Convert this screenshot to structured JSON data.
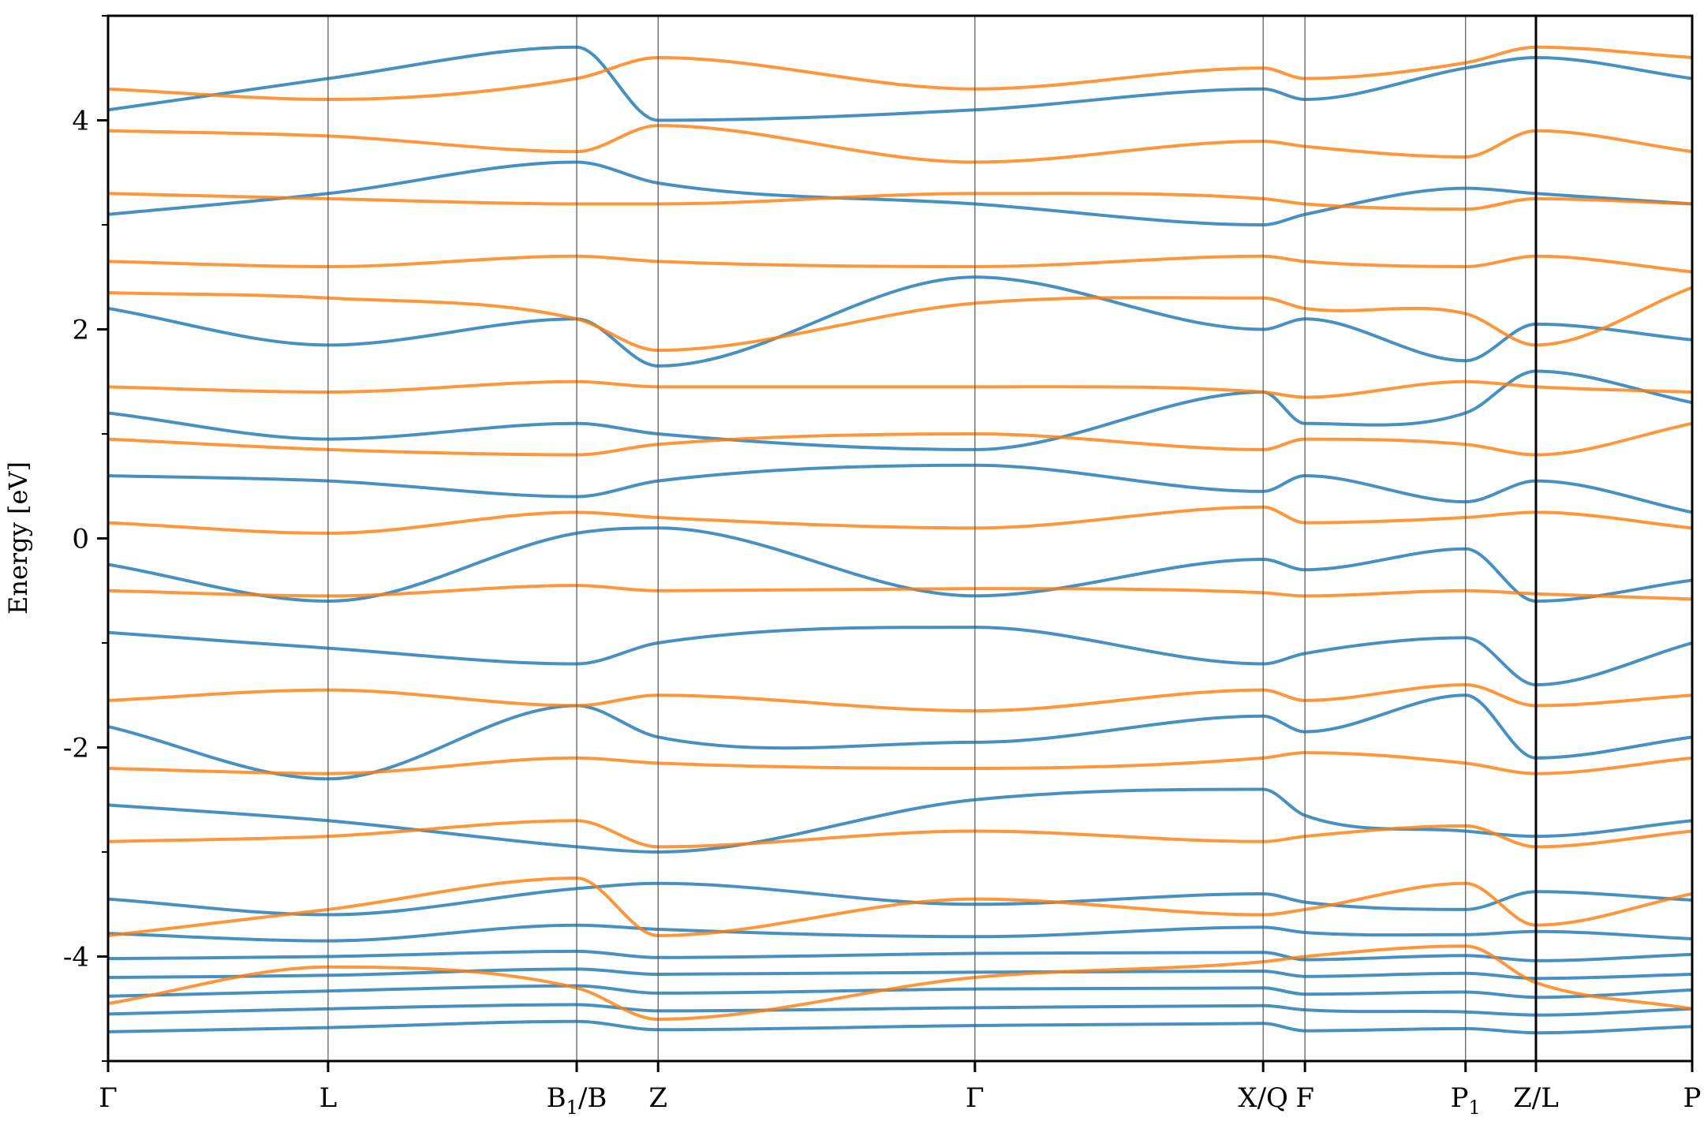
{
  "chart_data": {
    "type": "line",
    "title": "",
    "xlabel": "",
    "ylabel": "Energy [eV]",
    "ylim": [
      -5,
      5
    ],
    "yticks": [
      -4,
      -2,
      0,
      2,
      4
    ],
    "ytick_labels": [
      "-4",
      "-2",
      "0",
      "2",
      "4"
    ],
    "yminor_ticks": [
      -5,
      -3,
      -1,
      1,
      3,
      5
    ],
    "grid": false,
    "legend": "none",
    "kpath": {
      "points": [
        0.0,
        1.0,
        2.13,
        2.5,
        3.94,
        5.25,
        5.44,
        6.17,
        6.49,
        7.2
      ],
      "labels": [
        "Γ",
        "L",
        "B1/B",
        "Z",
        "Γ",
        "X/Q",
        "F",
        "P1",
        "Z/L",
        "P"
      ],
      "label_subscripts": [
        "",
        "",
        "1",
        "",
        "",
        "",
        "",
        "1",
        "",
        ""
      ],
      "segment_break_at": 6.49
    },
    "series": [
      {
        "spin": "up",
        "color": "#1f77b4",
        "bands": [
          [
            -4.72,
            -4.68,
            -4.62,
            -4.7,
            -4.66,
            -4.64,
            -4.71,
            -4.69,
            -4.73,
            -4.67
          ],
          [
            -4.55,
            -4.5,
            -4.46,
            -4.52,
            -4.49,
            -4.47,
            -4.51,
            -4.53,
            -4.56,
            -4.5
          ],
          [
            -4.38,
            -4.33,
            -4.28,
            -4.35,
            -4.31,
            -4.3,
            -4.36,
            -4.34,
            -4.39,
            -4.32
          ],
          [
            -4.2,
            -4.18,
            -4.12,
            -4.17,
            -4.15,
            -4.14,
            -4.19,
            -4.16,
            -4.21,
            -4.17
          ],
          [
            -4.02,
            -4.0,
            -3.95,
            -4.01,
            -3.97,
            -3.96,
            -4.03,
            -3.99,
            -4.04,
            -3.98
          ],
          [
            -3.78,
            -3.85,
            -3.7,
            -3.74,
            -3.81,
            -3.72,
            -3.77,
            -3.79,
            -3.76,
            -3.83
          ],
          [
            -3.45,
            -3.6,
            -3.35,
            -3.3,
            -3.5,
            -3.4,
            -3.48,
            -3.55,
            -3.38,
            -3.46
          ],
          [
            -2.55,
            -2.7,
            -2.95,
            -3.0,
            -2.5,
            -2.4,
            -2.65,
            -2.8,
            -2.85,
            -2.7
          ],
          [
            -1.8,
            -2.3,
            -1.6,
            -1.9,
            -1.95,
            -1.7,
            -1.85,
            -1.5,
            -2.1,
            -1.9
          ],
          [
            -0.9,
            -1.05,
            -1.2,
            -1.0,
            -0.85,
            -1.2,
            -1.1,
            -0.95,
            -1.4,
            -1.0
          ],
          [
            -0.25,
            -0.6,
            0.05,
            0.1,
            -0.55,
            -0.2,
            -0.3,
            -0.1,
            -0.6,
            -0.4
          ],
          [
            0.6,
            0.55,
            0.4,
            0.55,
            0.7,
            0.45,
            0.6,
            0.35,
            0.55,
            0.25
          ],
          [
            1.2,
            0.95,
            1.1,
            1.0,
            0.85,
            1.4,
            1.1,
            1.2,
            1.6,
            1.3
          ],
          [
            2.2,
            1.85,
            2.1,
            1.65,
            2.5,
            2.0,
            2.1,
            1.7,
            2.05,
            1.9
          ],
          [
            3.1,
            3.3,
            3.6,
            3.4,
            3.2,
            3.0,
            3.1,
            3.35,
            3.3,
            3.2
          ],
          [
            4.1,
            4.4,
            4.7,
            4.0,
            4.1,
            4.3,
            4.2,
            4.5,
            4.6,
            4.4
          ]
        ]
      },
      {
        "spin": "down",
        "color": "#ff7f0e",
        "bands": [
          [
            -4.45,
            -4.1,
            -4.3,
            -4.6,
            -4.2,
            -4.05,
            -4.0,
            -3.9,
            -4.25,
            -4.5
          ],
          [
            -3.8,
            -3.55,
            -3.25,
            -3.8,
            -3.45,
            -3.6,
            -3.55,
            -3.3,
            -3.7,
            -3.4
          ],
          [
            -2.9,
            -2.85,
            -2.7,
            -2.95,
            -2.8,
            -2.9,
            -2.85,
            -2.75,
            -2.95,
            -2.8
          ],
          [
            -2.2,
            -2.25,
            -2.1,
            -2.15,
            -2.2,
            -2.1,
            -2.05,
            -2.15,
            -2.25,
            -2.1
          ],
          [
            -1.55,
            -1.45,
            -1.6,
            -1.5,
            -1.65,
            -1.45,
            -1.55,
            -1.4,
            -1.6,
            -1.5
          ],
          [
            -0.5,
            -0.55,
            -0.45,
            -0.5,
            -0.48,
            -0.52,
            -0.55,
            -0.5,
            -0.53,
            -0.58
          ],
          [
            0.15,
            0.05,
            0.25,
            0.2,
            0.1,
            0.3,
            0.15,
            0.2,
            0.25,
            0.1
          ],
          [
            0.95,
            0.85,
            0.8,
            0.9,
            1.0,
            0.85,
            0.95,
            0.9,
            0.8,
            1.1
          ],
          [
            1.45,
            1.4,
            1.5,
            1.45,
            1.45,
            1.4,
            1.35,
            1.5,
            1.45,
            1.4
          ],
          [
            2.35,
            2.3,
            2.1,
            1.8,
            2.25,
            2.3,
            2.2,
            2.15,
            1.85,
            2.4
          ],
          [
            2.65,
            2.6,
            2.7,
            2.65,
            2.6,
            2.7,
            2.65,
            2.6,
            2.7,
            2.55
          ],
          [
            3.3,
            3.25,
            3.2,
            3.2,
            3.3,
            3.25,
            3.2,
            3.15,
            3.25,
            3.2
          ],
          [
            3.9,
            3.85,
            3.7,
            3.95,
            3.6,
            3.8,
            3.75,
            3.65,
            3.9,
            3.7
          ],
          [
            4.3,
            4.2,
            4.4,
            4.6,
            4.3,
            4.5,
            4.4,
            4.55,
            4.7,
            4.6
          ]
        ]
      }
    ]
  }
}
